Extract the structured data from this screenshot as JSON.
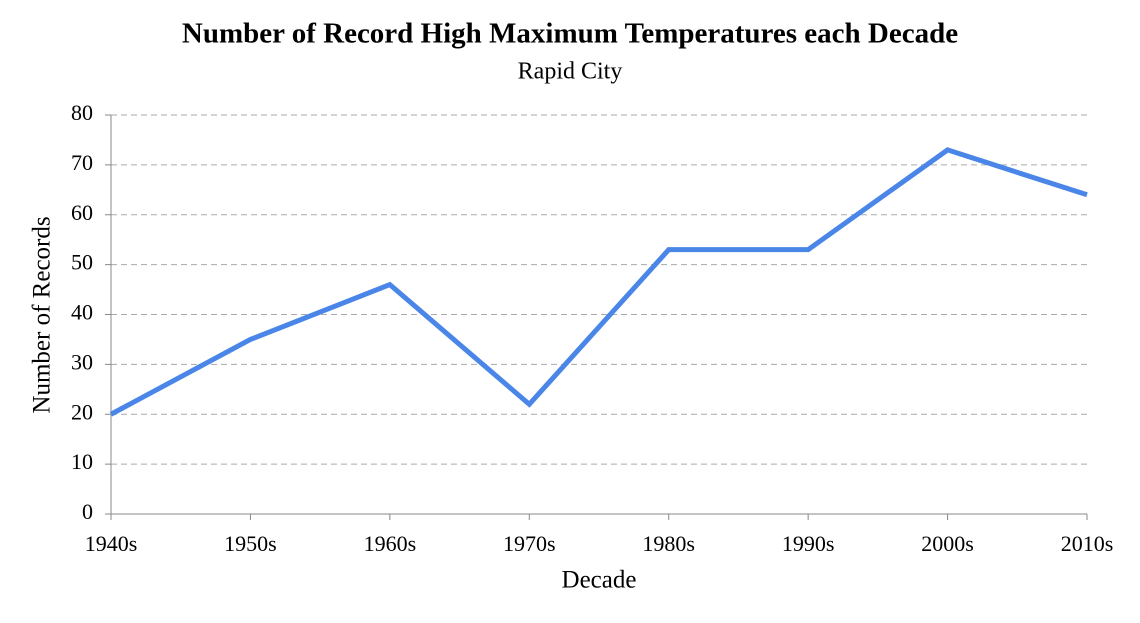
{
  "chart_data": {
    "type": "line",
    "title": "Number of Record High Maximum Temperatures each Decade",
    "subtitle": "Rapid City",
    "x_label": "Decade",
    "y_label": "Number of Records",
    "categories": [
      "1940s",
      "1950s",
      "1960s",
      "1970s",
      "1980s",
      "1990s",
      "2000s",
      "2010s"
    ],
    "values": [
      20,
      35,
      46,
      22,
      53,
      53,
      73,
      64
    ],
    "color": "#4a86e8",
    "ylim": [
      0,
      80
    ],
    "yticks": [
      0,
      10,
      20,
      30,
      40,
      50,
      60,
      70,
      80
    ],
    "grid": true
  }
}
